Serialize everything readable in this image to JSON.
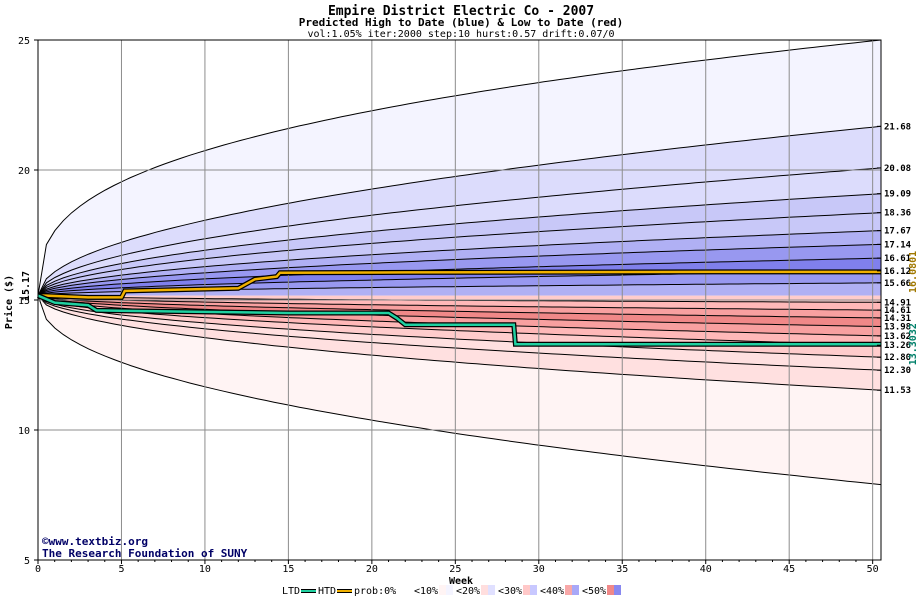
{
  "chart_data": {
    "type": "area",
    "title": "Empire District Electric Co - 2007",
    "subtitle": "Predicted High to Date (blue) &  Low to Date (red)",
    "params": "vol:1.05% iter:2000 step:10 hurst:0.57 drift:0.07/0",
    "xlabel": "Week",
    "ylabel": "Price ($)",
    "xlim": [
      0,
      50.5
    ],
    "ylim": [
      5,
      25
    ],
    "x_ticks": [
      0,
      5,
      10,
      15,
      20,
      25,
      30,
      35,
      40,
      45,
      50
    ],
    "y_ticks": [
      5,
      10,
      15,
      20,
      25
    ],
    "start_price": 15.17,
    "start_label": "15.17",
    "grid": true,
    "high_bands": [
      {
        "final": 25.0,
        "growth": 0.35
      },
      {
        "final": 21.68,
        "growth": 0.5
      },
      {
        "final": 20.08,
        "growth": 0.5
      },
      {
        "final": 19.09,
        "growth": 0.5
      },
      {
        "final": 18.36,
        "growth": 0.5
      },
      {
        "final": 17.67,
        "growth": 0.5
      },
      {
        "final": 17.14,
        "growth": 0.5
      },
      {
        "final": 16.61,
        "growth": 0.5
      },
      {
        "final": 16.12,
        "growth": 0.5
      },
      {
        "final": 15.66,
        "growth": 0.5
      }
    ],
    "low_bands": [
      {
        "final": 7.9,
        "growth": 0.45
      },
      {
        "final": 11.53,
        "growth": 0.5
      },
      {
        "final": 12.3,
        "growth": 0.5
      },
      {
        "final": 12.8,
        "growth": 0.5
      },
      {
        "final": 13.26,
        "growth": 0.5
      },
      {
        "final": 13.62,
        "growth": 0.5
      },
      {
        "final": 13.98,
        "growth": 0.5
      },
      {
        "final": 14.31,
        "growth": 0.5
      },
      {
        "final": 14.61,
        "growth": 0.5
      },
      {
        "final": 14.91,
        "growth": 0.5
      }
    ],
    "right_labels": [
      {
        "value": 21.68,
        "text": "21.68"
      },
      {
        "value": 20.08,
        "text": "20.08"
      },
      {
        "value": 19.09,
        "text": "19.09"
      },
      {
        "value": 18.36,
        "text": "18.36"
      },
      {
        "value": 17.67,
        "text": "17.67"
      },
      {
        "value": 17.14,
        "text": "17.14"
      },
      {
        "value": 16.61,
        "text": "16.61"
      },
      {
        "value": 16.12,
        "text": "16.12"
      },
      {
        "value": 15.66,
        "text": "15.66"
      },
      {
        "value": 14.91,
        "text": "14.91"
      },
      {
        "value": 14.61,
        "text": "14.61"
      },
      {
        "value": 14.31,
        "text": "14.31"
      },
      {
        "value": 13.98,
        "text": "13.98"
      },
      {
        "value": 13.62,
        "text": "13.62"
      },
      {
        "value": 13.26,
        "text": "13.26"
      },
      {
        "value": 12.8,
        "text": "12.80"
      },
      {
        "value": 12.3,
        "text": "12.30"
      },
      {
        "value": 11.53,
        "text": "11.53"
      }
    ],
    "htd_series": {
      "name": "HTD",
      "color": "#f0b000",
      "points": [
        [
          0,
          15.17
        ],
        [
          0.5,
          15.17
        ],
        [
          3,
          15.1
        ],
        [
          5,
          15.1
        ],
        [
          5.2,
          15.35
        ],
        [
          12,
          15.45
        ],
        [
          13,
          15.8
        ],
        [
          14.3,
          15.9
        ],
        [
          14.5,
          16.05
        ],
        [
          22,
          16.06
        ],
        [
          40,
          16.08
        ],
        [
          50.5,
          16.08
        ]
      ],
      "final_label": "16.0801"
    },
    "ltd_series": {
      "name": "LTD",
      "color": "#20d0a0",
      "points": [
        [
          0,
          15.17
        ],
        [
          1,
          14.9
        ],
        [
          3,
          14.8
        ],
        [
          3.5,
          14.6
        ],
        [
          15,
          14.5
        ],
        [
          21,
          14.5
        ],
        [
          21.5,
          14.3
        ],
        [
          22,
          14.05
        ],
        [
          28.5,
          14.05
        ],
        [
          28.6,
          13.3
        ],
        [
          42,
          13.3
        ],
        [
          50.5,
          13.3
        ]
      ],
      "final_label": "13.3032"
    },
    "colors": {
      "high_prob0": "#f4f4ff",
      "high_prob10": "#dcdcfc",
      "high_prob20": "#c8c8f8",
      "high_prob30": "#b0b0f4",
      "high_prob40": "#9898f0",
      "high_prob50": "#8080ec",
      "low_prob0": "#fff4f4",
      "low_prob10": "#ffe0e0",
      "low_prob20": "#ffcccc",
      "low_prob30": "#ffb8b8",
      "low_prob40": "#f8a0a0",
      "low_prob50": "#f08888",
      "htd_label": "#a07800",
      "ltd_label": "#00806a"
    },
    "legend": {
      "items": [
        {
          "label": "LTD",
          "swatch": "line",
          "color": "#20d0a0"
        },
        {
          "label": "HTD",
          "swatch": "line",
          "color": "#f0b000"
        },
        {
          "label": "prob:0%",
          "swatch": "box",
          "fill": "#ffffff",
          "fill2": "#ffffff"
        },
        {
          "label": "<10%",
          "swatch": "box",
          "fill": "#fff4f4",
          "fill2": "#f4f4ff"
        },
        {
          "label": "<20%",
          "swatch": "box",
          "fill": "#ffdede",
          "fill2": "#e0e0ff"
        },
        {
          "label": "<30%",
          "swatch": "box",
          "fill": "#ffc8c8",
          "fill2": "#c8c8ff"
        },
        {
          "label": "<40%",
          "swatch": "box",
          "fill": "#f8a8a8",
          "fill2": "#a8a8f8"
        },
        {
          "label": "<50%",
          "swatch": "box",
          "fill": "#f08888",
          "fill2": "#8888f0"
        }
      ]
    },
    "credit_lines": [
      "©www.textbiz.org",
      "The Research Foundation of SUNY"
    ]
  }
}
